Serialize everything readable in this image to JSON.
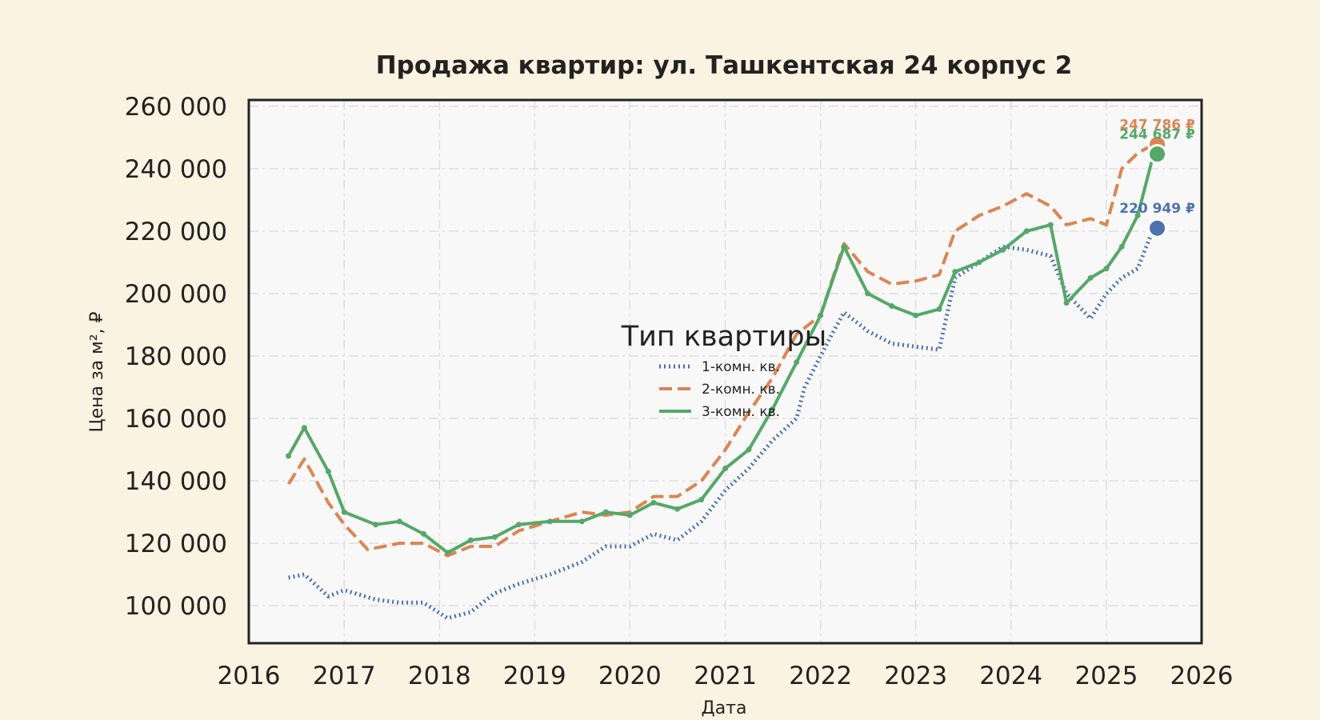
{
  "chart_data": {
    "type": "line",
    "title": "Продажа квартир: ул. Ташкентская 24 корпус 2",
    "xlabel": "Дата",
    "ylabel": "Цена за м², ₽",
    "xlim": [
      "2016-01-01",
      "2026-01-01"
    ],
    "ylim": [
      88000,
      262000
    ],
    "x_ticks": [
      "2016",
      "2017",
      "2018",
      "2019",
      "2020",
      "2021",
      "2022",
      "2023",
      "2024",
      "2025",
      "2026"
    ],
    "y_ticks": [
      "100 000",
      "120 000",
      "140 000",
      "160 000",
      "180 000",
      "200 000",
      "220 000",
      "240 000",
      "260 000"
    ],
    "y_tick_values": [
      100000,
      120000,
      140000,
      160000,
      180000,
      200000,
      220000,
      240000,
      260000
    ],
    "grid": true,
    "legend": {
      "title": "Тип квартиры",
      "placement": "center"
    },
    "colors": {
      "background": "#fbf3e1",
      "plot_bg": "#f8f8f8",
      "grid": "#dedede"
    },
    "series": [
      {
        "name": "1-комн. кв.",
        "color": "#4c72b0",
        "style": "dotted",
        "points": [
          [
            "2016-06-01",
            109000
          ],
          [
            "2016-08-01",
            110000
          ],
          [
            "2016-11-01",
            103000
          ],
          [
            "2017-01-01",
            105000
          ],
          [
            "2017-05-01",
            102000
          ],
          [
            "2017-08-01",
            101000
          ],
          [
            "2017-11-01",
            101000
          ],
          [
            "2018-02-01",
            96000
          ],
          [
            "2018-05-01",
            98000
          ],
          [
            "2018-08-01",
            104000
          ],
          [
            "2018-11-01",
            107000
          ],
          [
            "2019-03-01",
            110000
          ],
          [
            "2019-07-01",
            114000
          ],
          [
            "2019-10-01",
            119000
          ],
          [
            "2020-01-01",
            119000
          ],
          [
            "2020-04-01",
            123000
          ],
          [
            "2020-07-01",
            121000
          ],
          [
            "2020-10-01",
            127000
          ],
          [
            "2021-01-01",
            137000
          ],
          [
            "2021-04-01",
            144000
          ],
          [
            "2021-07-01",
            153000
          ],
          [
            "2021-10-01",
            160000
          ],
          [
            "2021-11-01",
            170000
          ],
          [
            "2022-02-01",
            185000
          ],
          [
            "2022-04-01",
            194000
          ],
          [
            "2022-07-01",
            188000
          ],
          [
            "2022-10-01",
            184000
          ],
          [
            "2023-01-01",
            183000
          ],
          [
            "2023-04-01",
            182000
          ],
          [
            "2023-06-01",
            205000
          ],
          [
            "2023-09-01",
            210000
          ],
          [
            "2023-12-01",
            215000
          ],
          [
            "2024-03-01",
            214000
          ],
          [
            "2024-06-01",
            212000
          ],
          [
            "2024-08-01",
            200000
          ],
          [
            "2024-11-01",
            192000
          ],
          [
            "2025-01-01",
            200000
          ],
          [
            "2025-03-01",
            205000
          ],
          [
            "2025-05-01",
            208000
          ],
          [
            "2025-07-01",
            220949
          ]
        ]
      },
      {
        "name": "2-комн. кв.",
        "color": "#dd8452",
        "style": "dashed",
        "points": [
          [
            "2016-06-01",
            139000
          ],
          [
            "2016-08-01",
            147000
          ],
          [
            "2016-11-01",
            133000
          ],
          [
            "2017-01-01",
            126000
          ],
          [
            "2017-04-01",
            118000
          ],
          [
            "2017-08-01",
            120000
          ],
          [
            "2017-11-01",
            120000
          ],
          [
            "2018-02-01",
            116000
          ],
          [
            "2018-05-01",
            119000
          ],
          [
            "2018-08-01",
            119000
          ],
          [
            "2018-11-01",
            124000
          ],
          [
            "2019-03-01",
            127000
          ],
          [
            "2019-07-01",
            130000
          ],
          [
            "2019-10-01",
            129000
          ],
          [
            "2020-01-01",
            130000
          ],
          [
            "2020-04-01",
            135000
          ],
          [
            "2020-07-01",
            135000
          ],
          [
            "2020-10-01",
            140000
          ],
          [
            "2021-01-01",
            150000
          ],
          [
            "2021-04-01",
            162000
          ],
          [
            "2021-07-01",
            173000
          ],
          [
            "2021-10-01",
            187000
          ],
          [
            "2022-01-01",
            193000
          ],
          [
            "2022-04-01",
            216000
          ],
          [
            "2022-07-01",
            207000
          ],
          [
            "2022-10-01",
            203000
          ],
          [
            "2023-01-01",
            204000
          ],
          [
            "2023-04-01",
            206000
          ],
          [
            "2023-06-01",
            220000
          ],
          [
            "2023-09-01",
            225000
          ],
          [
            "2023-12-01",
            228000
          ],
          [
            "2024-03-01",
            232000
          ],
          [
            "2024-06-01",
            228000
          ],
          [
            "2024-08-01",
            222000
          ],
          [
            "2024-11-01",
            224000
          ],
          [
            "2025-01-01",
            222000
          ],
          [
            "2025-03-01",
            240000
          ],
          [
            "2025-05-01",
            245000
          ],
          [
            "2025-07-01",
            247786
          ]
        ]
      },
      {
        "name": "3-комн. кв.",
        "color": "#55a868",
        "style": "solid-marked",
        "points": [
          [
            "2016-06-01",
            148000
          ],
          [
            "2016-08-01",
            157000
          ],
          [
            "2016-11-01",
            143000
          ],
          [
            "2017-01-01",
            130000
          ],
          [
            "2017-05-01",
            126000
          ],
          [
            "2017-08-01",
            127000
          ],
          [
            "2017-11-01",
            123000
          ],
          [
            "2018-02-01",
            117000
          ],
          [
            "2018-05-01",
            121000
          ],
          [
            "2018-08-01",
            122000
          ],
          [
            "2018-11-01",
            126000
          ],
          [
            "2019-03-01",
            127000
          ],
          [
            "2019-07-01",
            127000
          ],
          [
            "2019-10-01",
            130000
          ],
          [
            "2020-01-01",
            129000
          ],
          [
            "2020-04-01",
            133000
          ],
          [
            "2020-07-01",
            131000
          ],
          [
            "2020-10-01",
            134000
          ],
          [
            "2021-01-01",
            144000
          ],
          [
            "2021-04-01",
            150000
          ],
          [
            "2021-07-01",
            163000
          ],
          [
            "2021-10-01",
            178000
          ],
          [
            "2022-01-01",
            193000
          ],
          [
            "2022-04-01",
            215000
          ],
          [
            "2022-07-01",
            200000
          ],
          [
            "2022-10-01",
            196000
          ],
          [
            "2023-01-01",
            193000
          ],
          [
            "2023-04-01",
            195000
          ],
          [
            "2023-06-01",
            207000
          ],
          [
            "2023-09-01",
            210000
          ],
          [
            "2023-12-01",
            214000
          ],
          [
            "2024-03-01",
            220000
          ],
          [
            "2024-06-01",
            222000
          ],
          [
            "2024-08-01",
            197000
          ],
          [
            "2024-11-01",
            205000
          ],
          [
            "2025-01-01",
            208000
          ],
          [
            "2025-03-01",
            215000
          ],
          [
            "2025-05-01",
            225000
          ],
          [
            "2025-07-01",
            244687
          ]
        ]
      }
    ],
    "annotations": [
      {
        "series": "2-комн. кв.",
        "text": "247 786 ₽",
        "value": 247786,
        "x": "2025-07-15",
        "color": "#dd8452"
      },
      {
        "series": "3-комн. кв.",
        "text": "244 687 ₽",
        "value": 244687,
        "x": "2025-07-15",
        "color": "#55a868"
      },
      {
        "series": "1-комн. кв.",
        "text": "220 949 ₽",
        "value": 220949,
        "x": "2025-07-15",
        "color": "#4c72b0"
      }
    ]
  }
}
